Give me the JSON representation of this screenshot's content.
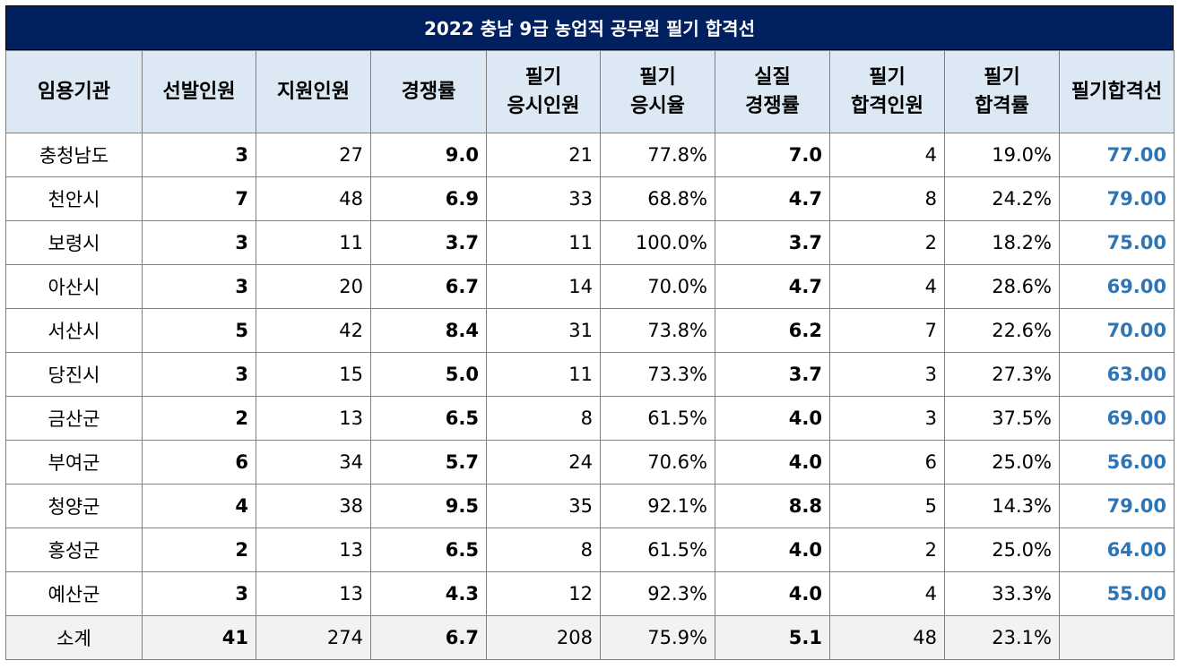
{
  "title": "2022 충남 9급 농업직 공무원 필기 합격선",
  "headers": [
    {
      "line1": "임용기관",
      "line2": ""
    },
    {
      "line1": "선발인원",
      "line2": ""
    },
    {
      "line1": "지원인원",
      "line2": ""
    },
    {
      "line1": "경쟁률",
      "line2": ""
    },
    {
      "line1": "필기",
      "line2": "응시인원"
    },
    {
      "line1": "필기",
      "line2": "응시율"
    },
    {
      "line1": "실질",
      "line2": "경쟁률"
    },
    {
      "line1": "필기",
      "line2": "합격인원"
    },
    {
      "line1": "필기",
      "line2": "합격률"
    },
    {
      "line1": "필기합격선",
      "line2": ""
    }
  ],
  "rows": [
    [
      "충청남도",
      "3",
      "27",
      "9.0",
      "21",
      "77.8%",
      "7.0",
      "4",
      "19.0%",
      "77.00"
    ],
    [
      "천안시",
      "7",
      "48",
      "6.9",
      "33",
      "68.8%",
      "4.7",
      "8",
      "24.2%",
      "79.00"
    ],
    [
      "보령시",
      "3",
      "11",
      "3.7",
      "11",
      "100.0%",
      "3.7",
      "2",
      "18.2%",
      "75.00"
    ],
    [
      "아산시",
      "3",
      "20",
      "6.7",
      "14",
      "70.0%",
      "4.7",
      "4",
      "28.6%",
      "69.00"
    ],
    [
      "서산시",
      "5",
      "42",
      "8.4",
      "31",
      "73.8%",
      "6.2",
      "7",
      "22.6%",
      "70.00"
    ],
    [
      "당진시",
      "3",
      "15",
      "5.0",
      "11",
      "73.3%",
      "3.7",
      "3",
      "27.3%",
      "63.00"
    ],
    [
      "금산군",
      "2",
      "13",
      "6.5",
      "8",
      "61.5%",
      "4.0",
      "3",
      "37.5%",
      "69.00"
    ],
    [
      "부여군",
      "6",
      "34",
      "5.7",
      "24",
      "70.6%",
      "4.0",
      "6",
      "25.0%",
      "56.00"
    ],
    [
      "청양군",
      "4",
      "38",
      "9.5",
      "35",
      "92.1%",
      "8.8",
      "5",
      "14.3%",
      "79.00"
    ],
    [
      "홍성군",
      "2",
      "13",
      "6.5",
      "8",
      "61.5%",
      "4.0",
      "2",
      "25.0%",
      "64.00"
    ],
    [
      "예산군",
      "3",
      "13",
      "4.3",
      "12",
      "92.3%",
      "4.0",
      "4",
      "33.3%",
      "55.00"
    ]
  ],
  "total": [
    "소계",
    "41",
    "274",
    "6.7",
    "208",
    "75.9%",
    "5.1",
    "48",
    "23.1%",
    ""
  ],
  "colors": {
    "title_bg": "#002060",
    "header_bg": "#dde8f5",
    "cutoff_text": "#2e75b6",
    "total_bg": "#f2f2f2"
  }
}
